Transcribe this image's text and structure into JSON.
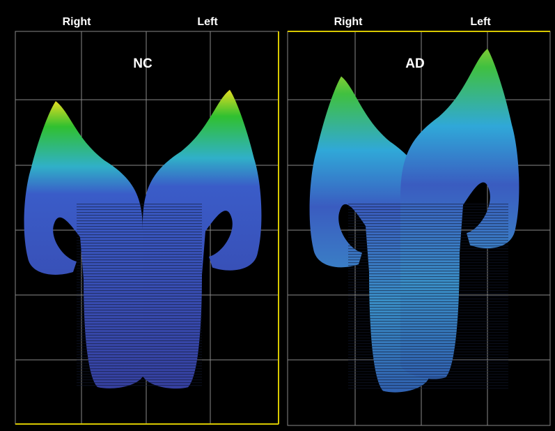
{
  "panels": [
    {
      "label": "NC",
      "headers": [
        "Right",
        "Left"
      ]
    },
    {
      "label": "AD",
      "headers": [
        "Right",
        "Left"
      ]
    }
  ]
}
